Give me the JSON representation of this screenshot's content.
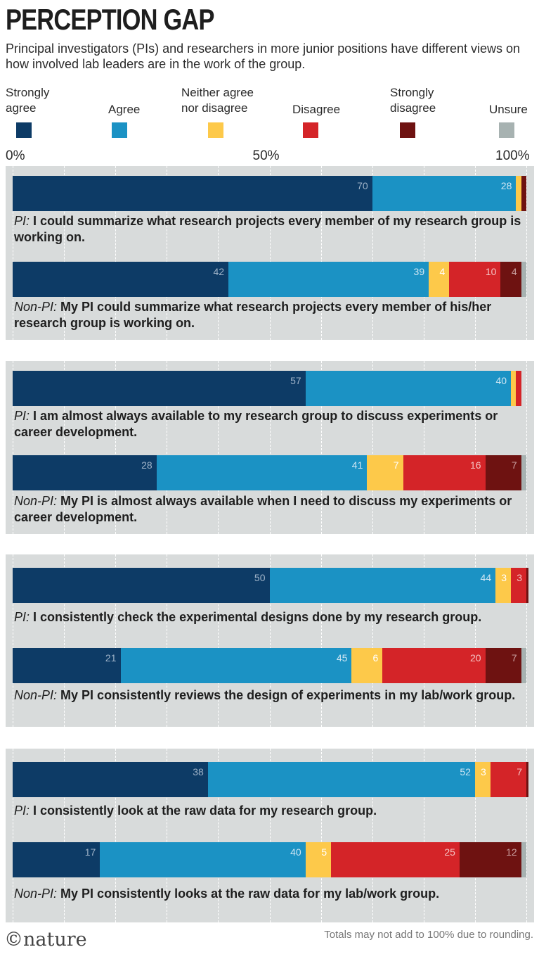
{
  "header": {
    "title": "PERCEPTION GAP",
    "subtitle": "Principal investigators (PIs) and researchers in more junior positions have different views on how involved lab leaders are in the work of the group."
  },
  "legend": [
    {
      "label": "Strongly agree",
      "color": "#0d3b66"
    },
    {
      "label": "Agree",
      "color": "#1b92c4"
    },
    {
      "label": "Neither agree nor disagree",
      "color": "#fdc94a"
    },
    {
      "label": "Disagree",
      "color": "#d42428"
    },
    {
      "label": "Strongly disagree",
      "color": "#6e1211"
    },
    {
      "label": "Unsure",
      "color": "#a7b2b1"
    }
  ],
  "axis": {
    "ticks": [
      "0%",
      "50%",
      "100%"
    ],
    "tick_values": [
      0,
      50,
      100
    ]
  },
  "footer": {
    "logo": "©nature",
    "note": "Totals may not add to 100% due to rounding."
  },
  "chart_data": {
    "type": "bar",
    "orientation": "horizontal-stacked-percent",
    "xlim": [
      0,
      100
    ],
    "series": [
      {
        "name": "Strongly agree",
        "color": "#0d3b66"
      },
      {
        "name": "Agree",
        "color": "#1b92c4"
      },
      {
        "name": "Neither agree nor disagree",
        "color": "#fdc94a"
      },
      {
        "name": "Disagree",
        "color": "#d42428"
      },
      {
        "name": "Strongly disagree",
        "color": "#6e1211"
      },
      {
        "name": "Unsure",
        "color": "#a7b2b1"
      }
    ],
    "groups": [
      {
        "rows": [
          {
            "who": "PI:",
            "text": "I could summarize what research projects every member of my research group is working on.",
            "values": [
              70,
              28,
              1,
              0,
              1,
              0
            ],
            "labels": [
              "70",
              "28",
              "",
              "",
              "",
              ""
            ]
          },
          {
            "who": "Non-PI:",
            "text": "My PI could summarize what research projects every member of his/her research group is working on.",
            "values": [
              42,
              39,
              4,
              10,
              4,
              1
            ],
            "labels": [
              "42",
              "39",
              "4",
              "10",
              "4",
              ""
            ]
          }
        ]
      },
      {
        "rows": [
          {
            "who": "PI:",
            "text": "I am almost always available to my research group to discuss experiments or career development.",
            "values": [
              57,
              40,
              1,
              1,
              0,
              0
            ],
            "labels": [
              "57",
              "40",
              "",
              "",
              "",
              ""
            ]
          },
          {
            "who": "Non-PI:",
            "text": "My PI is almost always available when I need to discuss my experiments or career development.",
            "values": [
              28,
              41,
              7,
              16,
              7,
              1
            ],
            "labels": [
              "28",
              "41",
              "7",
              "16",
              "7",
              ""
            ]
          }
        ]
      },
      {
        "rows": [
          {
            "who": "PI:",
            "text": "I consistently check the experimental designs done by my research group.",
            "values": [
              50,
              44,
              3,
              3,
              1,
              0
            ],
            "labels": [
              "50",
              "44",
              "3",
              "3",
              "",
              ""
            ]
          },
          {
            "who": "Non-PI:",
            "text": "My PI consistently reviews the design of experiments in my lab/work group.",
            "values": [
              21,
              45,
              6,
              20,
              7,
              1
            ],
            "labels": [
              "21",
              "45",
              "6",
              "20",
              "7",
              ""
            ]
          }
        ]
      },
      {
        "rows": [
          {
            "who": "PI:",
            "text": "I consistently look at the raw data for my research group.",
            "values": [
              38,
              52,
              3,
              7,
              1,
              0
            ],
            "labels": [
              "38",
              "52",
              "3",
              "7",
              "",
              ""
            ]
          },
          {
            "who": "Non-PI:",
            "text": "My PI consistently looks at the raw data for my lab/work group.",
            "values": [
              17,
              40,
              5,
              25,
              12,
              1
            ],
            "labels": [
              "17",
              "40",
              "5",
              "25",
              "12",
              ""
            ]
          }
        ]
      }
    ]
  }
}
